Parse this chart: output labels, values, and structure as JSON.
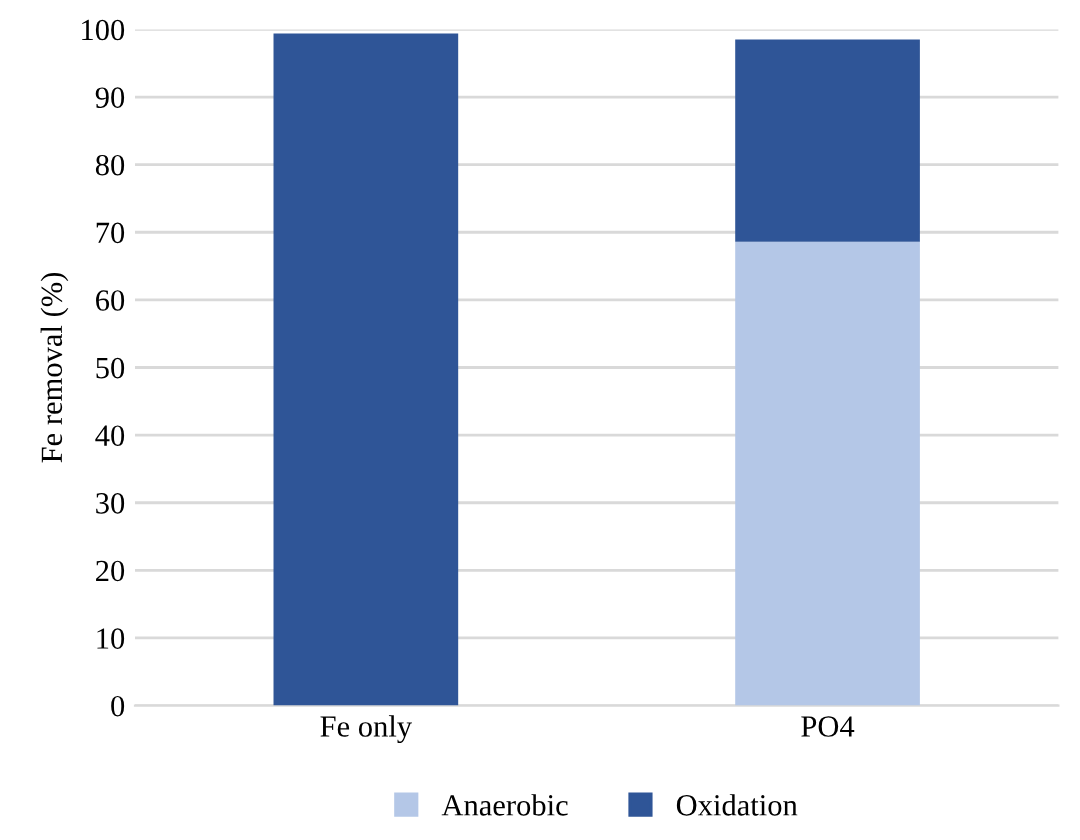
{
  "chart_data": {
    "type": "bar",
    "stacked": true,
    "ylabel": "Fe removal (%)",
    "categories": [
      "Fe only",
      "PO4"
    ],
    "series": [
      {
        "name": "Anaerobic",
        "color": "#b4c7e7",
        "values": [
          0,
          68.6
        ]
      },
      {
        "name": "Oxidation",
        "color": "#2f5597",
        "values": [
          99.4,
          29.9
        ]
      }
    ],
    "ylim": [
      0,
      100
    ],
    "yticks": [
      0,
      10,
      20,
      30,
      40,
      50,
      60,
      70,
      80,
      90,
      100
    ],
    "grid": "y",
    "legend": "bottom"
  }
}
